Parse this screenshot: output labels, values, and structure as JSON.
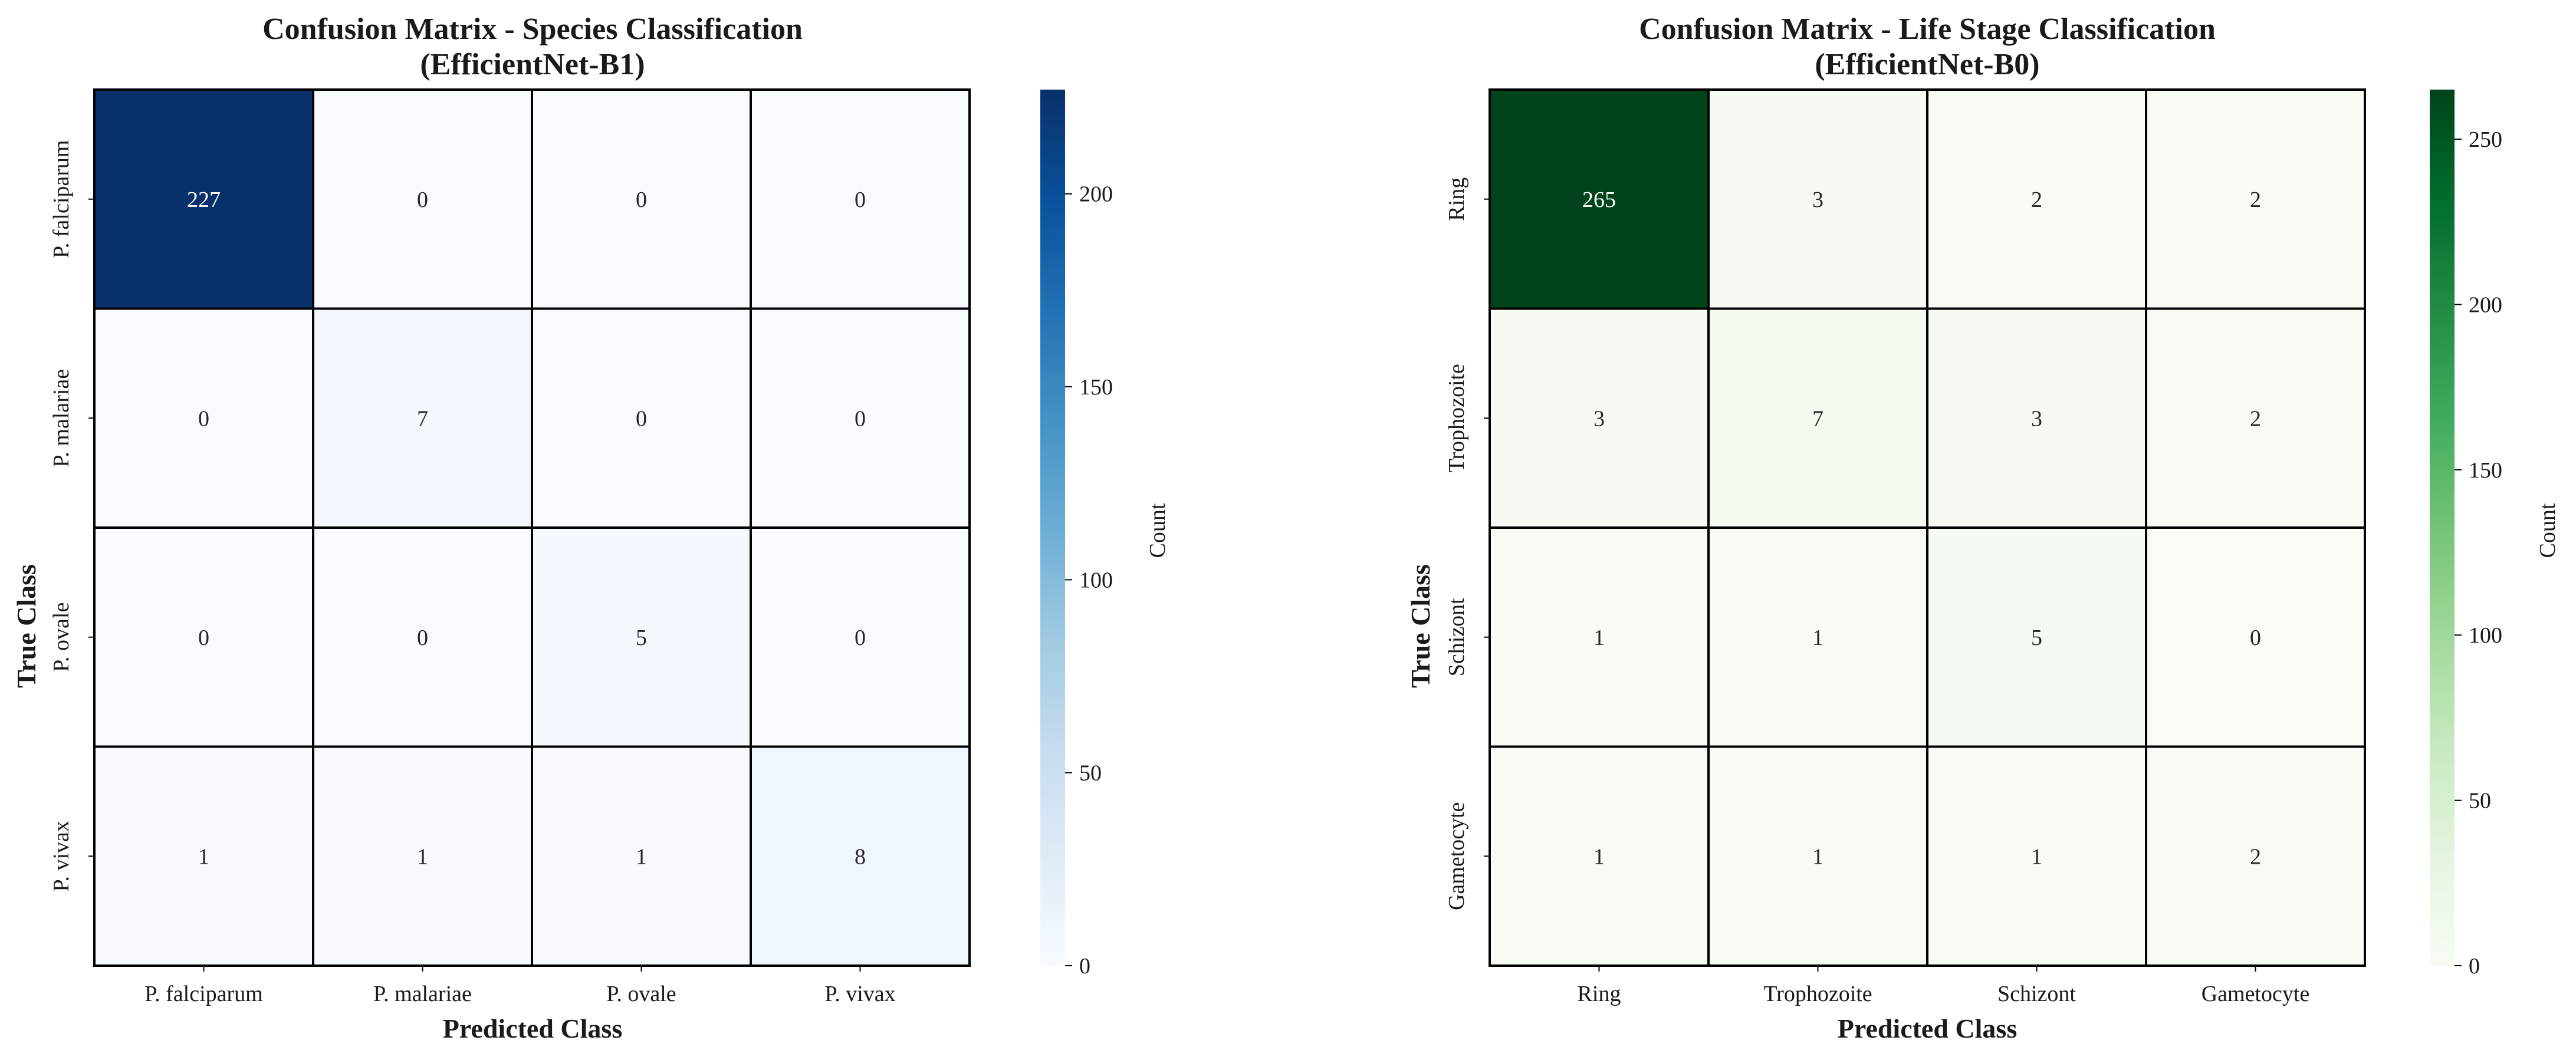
{
  "chart_data": [
    {
      "type": "heatmap",
      "title": "Confusion Matrix - Species Classification",
      "subtitle": "(EfficientNet-B1)",
      "xlabel": "Predicted Class",
      "ylabel": "True Class",
      "x_categories": [
        "P. falciparum",
        "P. malariae",
        "P. ovale",
        "P. vivax"
      ],
      "y_categories": [
        "P. falciparum",
        "P. malariae",
        "P. ovale",
        "P. vivax"
      ],
      "values": [
        [
          227,
          0,
          0,
          0
        ],
        [
          0,
          7,
          0,
          0
        ],
        [
          0,
          0,
          5,
          0
        ],
        [
          1,
          1,
          1,
          8
        ]
      ],
      "colorbar": {
        "label": "Count",
        "range": [
          0,
          227
        ],
        "ticks": [
          0,
          50,
          100,
          150,
          200
        ],
        "colormap": [
          "#f7fbff",
          "#deebf7",
          "#c6dbef",
          "#9ecae1",
          "#6baed6",
          "#4292c6",
          "#2171b5",
          "#08519c",
          "#08306b"
        ]
      },
      "text_color_dark": "#262626",
      "text_color_light": "#ffffff"
    },
    {
      "type": "heatmap",
      "title": "Confusion Matrix - Life Stage Classification",
      "subtitle": "(EfficientNet-B0)",
      "xlabel": "Predicted Class",
      "ylabel": "True Class",
      "x_categories": [
        "Ring",
        "Trophozoite",
        "Schizont",
        "Gametocyte"
      ],
      "y_categories": [
        "Ring",
        "Trophozoite",
        "Schizont",
        "Gametocyte"
      ],
      "values": [
        [
          265,
          3,
          2,
          2
        ],
        [
          3,
          7,
          3,
          2
        ],
        [
          1,
          1,
          5,
          0
        ],
        [
          1,
          1,
          1,
          2
        ]
      ],
      "colorbar": {
        "label": "Count",
        "range": [
          0,
          265
        ],
        "ticks": [
          0,
          50,
          100,
          150,
          200,
          250
        ],
        "colormap": [
          "#f7fcf5",
          "#e5f5e0",
          "#c7e9c0",
          "#a1d99b",
          "#74c476",
          "#41ab5d",
          "#238b45",
          "#006d2c",
          "#00441b"
        ]
      },
      "text_color_dark": "#262626",
      "text_color_light": "#ffffff"
    }
  ]
}
